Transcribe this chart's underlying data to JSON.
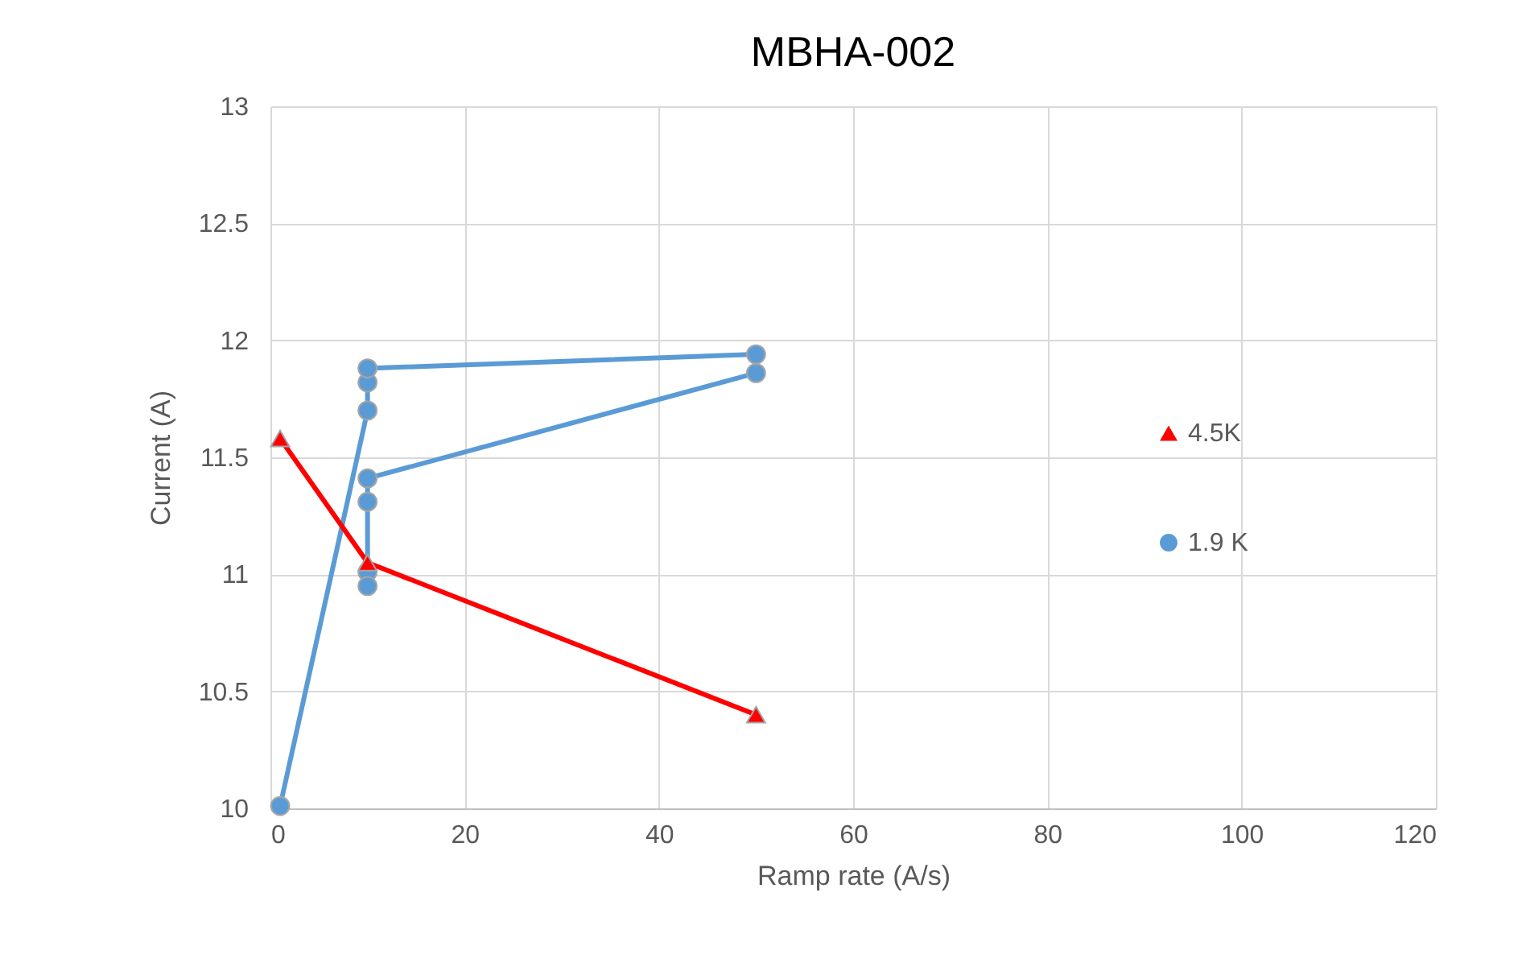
{
  "chart_data": {
    "type": "line",
    "title": "MBHA-002",
    "xlabel": "Ramp rate (A/s)",
    "ylabel": "Current (A)",
    "xlim": [
      0,
      120
    ],
    "xticks": [
      0,
      20,
      40,
      60,
      80,
      100,
      120
    ],
    "ylim": [
      10,
      13
    ],
    "yticks": [
      10,
      10.5,
      11,
      11.5,
      12,
      12.5,
      13
    ],
    "grid": true,
    "legend": "right",
    "series": [
      {
        "name": "4.5K",
        "color": "#ff0000",
        "marker": "triangle",
        "x": [
          1,
          10,
          50
        ],
        "values": [
          11.58,
          11.05,
          10.4
        ]
      },
      {
        "name": "1.9 K",
        "color": "#5b9bd5",
        "marker": "circle",
        "x": [
          1,
          10,
          10,
          10,
          50,
          50,
          10,
          10,
          10,
          10
        ],
        "values": [
          10.01,
          11.7,
          11.82,
          11.88,
          11.94,
          11.86,
          11.41,
          11.31,
          11.01,
          10.95
        ]
      }
    ]
  }
}
